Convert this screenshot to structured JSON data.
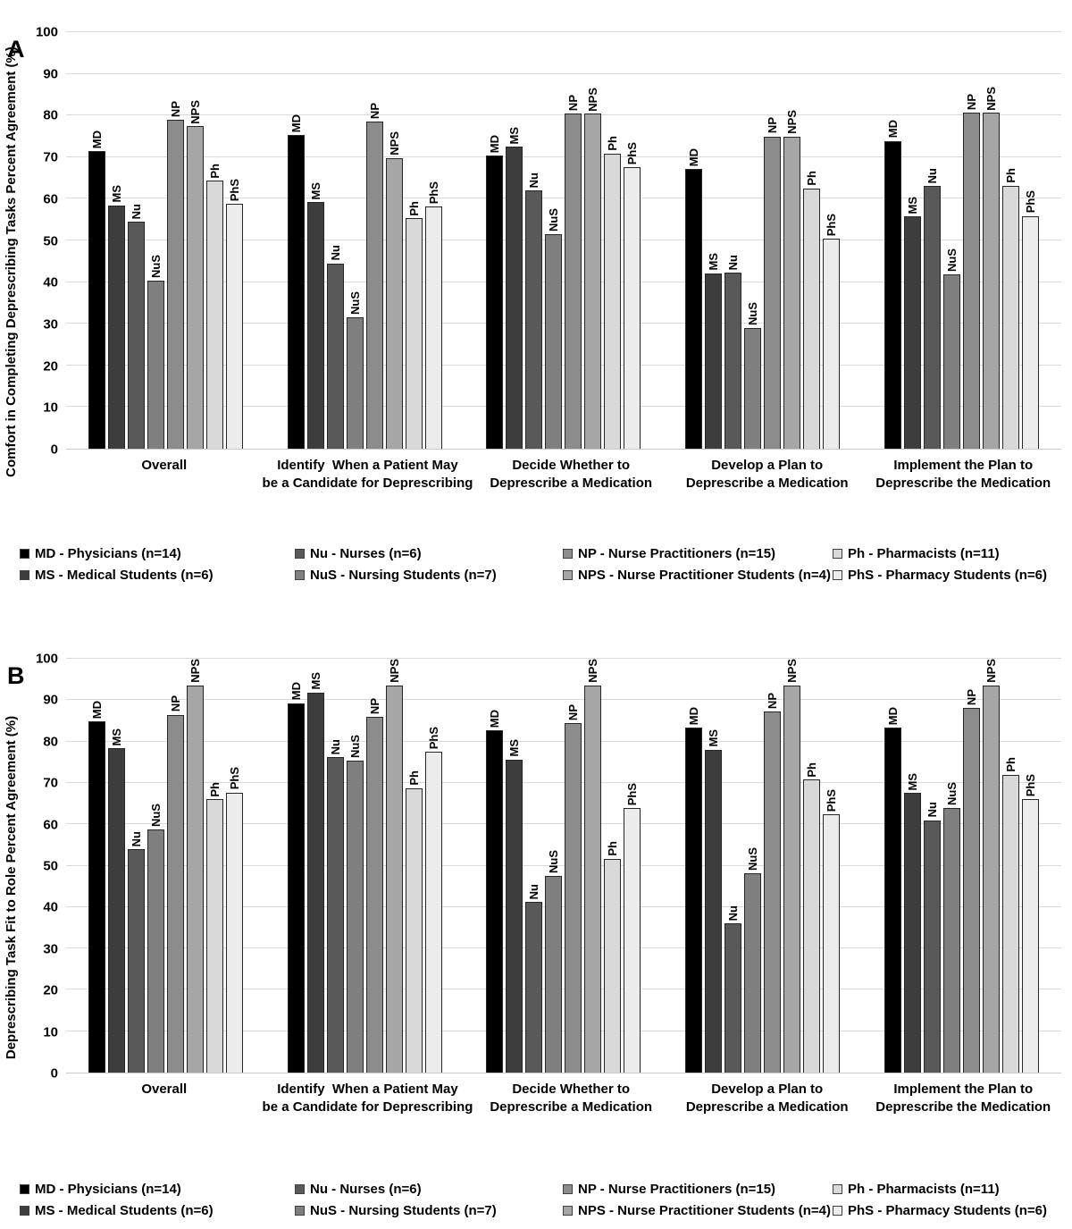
{
  "chart_data": [
    {
      "type": "bar",
      "panel_label": "A",
      "ylabel": "Comfort in Completing Deprescribing Tasks Percent Agreement (%)",
      "ylim": [
        0,
        100
      ],
      "yticks": [
        0,
        10,
        20,
        30,
        40,
        50,
        60,
        70,
        80,
        90,
        100
      ],
      "grid": true,
      "legend_position": "bottom",
      "categories": [
        "Overall",
        "Identify  When a Patient May\nbe a Candidate for Deprescribing",
        "Decide Whether to\nDeprescribe a Medication",
        "Develop a Plan to\nDeprescribe a Medication",
        "Implement the Plan to\nDeprescribe the Medication"
      ],
      "series": [
        {
          "abbr": "MD",
          "legend": "MD - Physicians (n=14)",
          "color": "#000000",
          "values": [
            71.4,
            75.3,
            70.3,
            67.2,
            73.9
          ]
        },
        {
          "abbr": "MS",
          "legend": "MS - Medical Students (n=6)",
          "color": "#3d3d3d",
          "values": [
            58.4,
            59.2,
            72.5,
            42.1,
            55.7
          ]
        },
        {
          "abbr": "Nu",
          "legend": "Nu - Nurses (n=6)",
          "color": "#595959",
          "values": [
            54.5,
            44.5,
            62.0,
            42.2,
            63.0
          ]
        },
        {
          "abbr": "NuS",
          "legend": "NuS - Nursing Students (n=7)",
          "color": "#7f7f7f",
          "values": [
            40.4,
            31.6,
            51.4,
            28.9,
            41.9
          ]
        },
        {
          "abbr": "NP",
          "legend": "NP - Nurse Practitioners (n=15)",
          "color": "#8c8c8c",
          "values": [
            79.0,
            78.5,
            80.4,
            75.0,
            80.6
          ]
        },
        {
          "abbr": "NPS",
          "legend": "NPS - Nurse Practitioner Students (n=4)",
          "color": "#a6a6a6",
          "values": [
            77.4,
            69.7,
            80.4,
            75.0,
            80.6
          ]
        },
        {
          "abbr": "Ph",
          "legend": "Ph - Pharmacists (n=11)",
          "color": "#d9d9d9",
          "values": [
            64.3,
            55.3,
            70.9,
            62.5,
            63.1
          ]
        },
        {
          "abbr": "PhS",
          "legend": "PhS - Pharmacy Students (n=6)",
          "color": "#ececec",
          "values": [
            58.8,
            58.1,
            67.5,
            50.4,
            55.9
          ]
        }
      ]
    },
    {
      "type": "bar",
      "panel_label": "B",
      "ylabel": "Deprescribing Task Fit to Role Percent Agreement (%)",
      "ylim": [
        0,
        100
      ],
      "yticks": [
        0,
        10,
        20,
        30,
        40,
        50,
        60,
        70,
        80,
        90,
        100
      ],
      "grid": true,
      "legend_position": "bottom",
      "categories": [
        "Overall",
        "Identify  When a Patient May\nbe a Candidate for Deprescribing",
        "Decide Whether to\nDeprescribe a Medication",
        "Develop a Plan to\nDeprescribe a Medication",
        "Implement the Plan to\nDeprescribe the Medication"
      ],
      "series": [
        {
          "abbr": "MD",
          "legend": "MD - Physicians (n=14)",
          "color": "#000000",
          "values": [
            84.8,
            89.3,
            82.7,
            83.3,
            83.3
          ]
        },
        {
          "abbr": "MS",
          "legend": "MS - Medical Students (n=6)",
          "color": "#3d3d3d",
          "values": [
            78.3,
            91.9,
            75.7,
            78.0,
            67.6
          ]
        },
        {
          "abbr": "Nu",
          "legend": "Nu - Nurses (n=6)",
          "color": "#595959",
          "values": [
            53.9,
            76.2,
            41.2,
            36.0,
            61.0
          ]
        },
        {
          "abbr": "NuS",
          "legend": "NuS - Nursing Students (n=7)",
          "color": "#7f7f7f",
          "values": [
            58.8,
            75.4,
            47.6,
            48.2,
            64.0
          ]
        },
        {
          "abbr": "NP",
          "legend": "NP - Nurse Practitioners (n=15)",
          "color": "#8c8c8c",
          "values": [
            86.5,
            86.0,
            84.4,
            87.3,
            88.2
          ]
        },
        {
          "abbr": "NPS",
          "legend": "NPS - Nurse Practitioner Students (n=4)",
          "color": "#a6a6a6",
          "values": [
            96.0,
            97.3,
            95.0,
            96.4,
            95.1
          ]
        },
        {
          "abbr": "Ph",
          "legend": "Ph - Pharmacists (n=11)",
          "color": "#d9d9d9",
          "values": [
            66.0,
            68.7,
            51.7,
            70.8,
            72.0
          ]
        },
        {
          "abbr": "PhS",
          "legend": "PhS - Pharmacy Students (n=6)",
          "color": "#ececec",
          "values": [
            67.7,
            77.5,
            63.9,
            62.4,
            66.0
          ]
        }
      ]
    }
  ]
}
